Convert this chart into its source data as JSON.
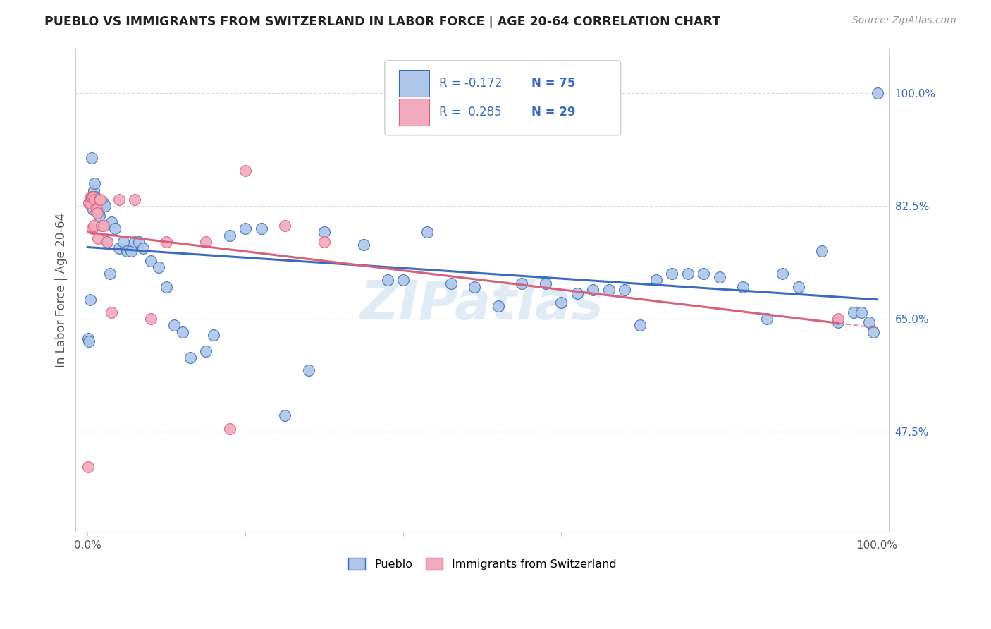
{
  "title": "PUEBLO VS IMMIGRANTS FROM SWITZERLAND IN LABOR FORCE | AGE 20-64 CORRELATION CHART",
  "source": "Source: ZipAtlas.com",
  "ylabel": "In Labor Force | Age 20-64",
  "right_yticks": [
    "100.0%",
    "82.5%",
    "65.0%",
    "47.5%"
  ],
  "right_ytick_vals": [
    1.0,
    0.825,
    0.65,
    0.475
  ],
  "pueblo_R": -0.172,
  "pueblo_N": 75,
  "swiss_R": 0.285,
  "swiss_N": 29,
  "pueblo_color": "#aec6e8",
  "swiss_color": "#f2aabe",
  "pueblo_line_color": "#3a6bbf",
  "swiss_line_color": "#d9607a",
  "background_color": "#ffffff",
  "watermark": "ZIPatlas",
  "pueblo_points_x": [
    0.001,
    0.002,
    0.003,
    0.004,
    0.005,
    0.006,
    0.007,
    0.008,
    0.009,
    0.01,
    0.011,
    0.012,
    0.013,
    0.014,
    0.015,
    0.016,
    0.018,
    0.02,
    0.022,
    0.025,
    0.028,
    0.03,
    0.035,
    0.04,
    0.045,
    0.05,
    0.055,
    0.06,
    0.065,
    0.07,
    0.08,
    0.09,
    0.1,
    0.11,
    0.12,
    0.13,
    0.15,
    0.16,
    0.18,
    0.2,
    0.22,
    0.25,
    0.28,
    0.3,
    0.35,
    0.38,
    0.4,
    0.43,
    0.46,
    0.49,
    0.52,
    0.55,
    0.58,
    0.6,
    0.62,
    0.64,
    0.66,
    0.68,
    0.7,
    0.72,
    0.74,
    0.76,
    0.78,
    0.8,
    0.83,
    0.86,
    0.88,
    0.9,
    0.93,
    0.95,
    0.97,
    0.98,
    0.99,
    0.995,
    1.0
  ],
  "pueblo_points_y": [
    0.62,
    0.615,
    0.68,
    0.83,
    0.9,
    0.83,
    0.82,
    0.85,
    0.86,
    0.84,
    0.835,
    0.83,
    0.82,
    0.815,
    0.81,
    0.83,
    0.83,
    0.83,
    0.825,
    0.77,
    0.72,
    0.8,
    0.79,
    0.76,
    0.77,
    0.755,
    0.755,
    0.77,
    0.77,
    0.76,
    0.74,
    0.73,
    0.7,
    0.64,
    0.63,
    0.59,
    0.6,
    0.625,
    0.78,
    0.79,
    0.79,
    0.5,
    0.57,
    0.785,
    0.765,
    0.71,
    0.71,
    0.785,
    0.705,
    0.7,
    0.67,
    0.705,
    0.705,
    0.675,
    0.69,
    0.695,
    0.695,
    0.695,
    0.64,
    0.71,
    0.72,
    0.72,
    0.72,
    0.715,
    0.7,
    0.65,
    0.72,
    0.7,
    0.755,
    0.645,
    0.66,
    0.66,
    0.645,
    0.63,
    1.0
  ],
  "swiss_points_x": [
    0.001,
    0.002,
    0.003,
    0.004,
    0.005,
    0.006,
    0.007,
    0.008,
    0.009,
    0.01,
    0.011,
    0.012,
    0.013,
    0.015,
    0.016,
    0.018,
    0.02,
    0.025,
    0.03,
    0.04,
    0.06,
    0.08,
    0.1,
    0.15,
    0.18,
    0.2,
    0.25,
    0.3,
    0.95
  ],
  "swiss_points_y": [
    0.42,
    0.83,
    0.83,
    0.84,
    0.84,
    0.79,
    0.84,
    0.795,
    0.835,
    0.82,
    0.82,
    0.815,
    0.775,
    0.835,
    0.835,
    0.795,
    0.795,
    0.77,
    0.66,
    0.835,
    0.835,
    0.65,
    0.77,
    0.77,
    0.48,
    0.88,
    0.795,
    0.77,
    0.65
  ]
}
